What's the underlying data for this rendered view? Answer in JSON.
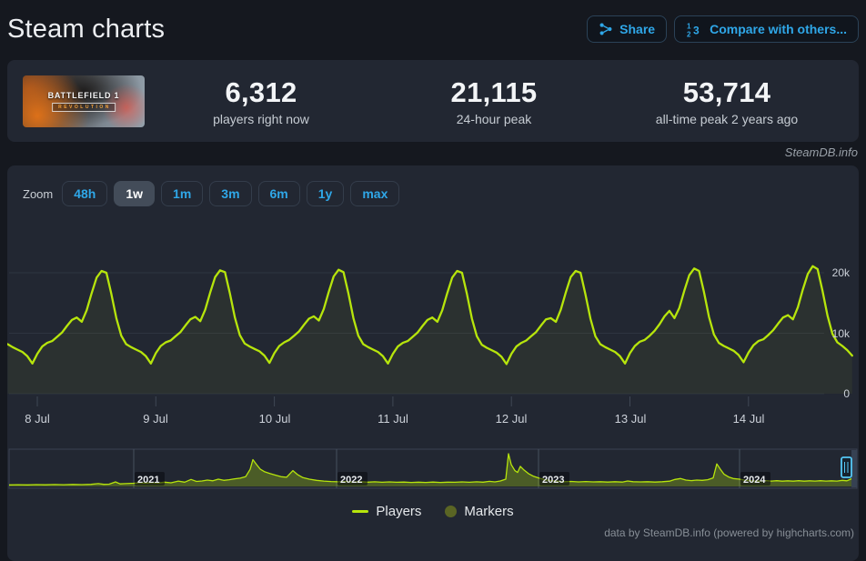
{
  "page": {
    "title": "Steam charts",
    "watermark": "SteamDB.info",
    "credits": "data by SteamDB.info (powered by highcharts.com)"
  },
  "header": {
    "share_label": "Share",
    "compare_label": "Compare with others...",
    "accent_color": "#2fa7e8"
  },
  "stats": {
    "game": {
      "name": "BATTLEFIELD 1",
      "edition": "REVOLUTION"
    },
    "items": [
      {
        "value": "6,312",
        "label": "players right now"
      },
      {
        "value": "21,115",
        "label": "24-hour peak"
      },
      {
        "value": "53,714",
        "label": "all-time peak 2 years ago"
      }
    ]
  },
  "toolbar": {
    "zoom_label": "Zoom",
    "ranges": [
      "48h",
      "1w",
      "1m",
      "3m",
      "6m",
      "1y",
      "max"
    ],
    "selected": "1w"
  },
  "chart_data": {
    "type": "line",
    "series_name": "Players",
    "line_color": "#b7e50c",
    "grid": true,
    "legend_position": "bottom-center",
    "ylim": [
      0,
      22000
    ],
    "yticks": [
      {
        "label": "0",
        "value": 0
      },
      {
        "label": "10k",
        "value": 10000
      },
      {
        "label": "20k",
        "value": 20000
      }
    ],
    "xticks": [
      "8 Jul",
      "9 Jul",
      "10 Jul",
      "11 Jul",
      "12 Jul",
      "13 Jul",
      "14 Jul"
    ],
    "start_hour_offset": -6,
    "values_thousands": [
      8.2,
      7.7,
      7.3,
      6.9,
      6.2,
      5.0,
      6.6,
      7.8,
      8.4,
      8.7,
      9.4,
      10.1,
      11.2,
      12.2,
      12.6,
      11.9,
      13.8,
      16.6,
      19.2,
      20.3,
      20.0,
      16.5,
      12.5,
      9.6,
      8.2,
      7.7,
      7.3,
      6.9,
      6.2,
      5.0,
      6.7,
      7.9,
      8.5,
      8.8,
      9.5,
      10.2,
      11.3,
      12.3,
      12.7,
      12.0,
      13.9,
      16.7,
      19.3,
      20.4,
      20.1,
      16.6,
      12.6,
      9.7,
      8.3,
      7.8,
      7.4,
      7.0,
      6.3,
      5.1,
      6.7,
      7.9,
      8.5,
      8.9,
      9.6,
      10.3,
      11.4,
      12.4,
      12.8,
      12.1,
      14.0,
      16.8,
      19.4,
      20.5,
      20.1,
      16.6,
      12.5,
      9.6,
      8.2,
      7.7,
      7.3,
      6.9,
      6.2,
      5.0,
      6.6,
      7.8,
      8.4,
      8.7,
      9.4,
      10.1,
      11.2,
      12.2,
      12.6,
      11.9,
      13.8,
      16.6,
      19.2,
      20.3,
      20.0,
      16.5,
      12.4,
      9.5,
      8.1,
      7.6,
      7.2,
      6.8,
      6.1,
      4.9,
      6.6,
      7.8,
      8.4,
      8.8,
      9.5,
      10.2,
      11.3,
      12.3,
      12.5,
      11.9,
      13.9,
      16.7,
      19.3,
      20.3,
      20.0,
      16.4,
      12.4,
      9.5,
      8.2,
      7.7,
      7.3,
      6.9,
      6.2,
      5.0,
      6.7,
      7.9,
      8.6,
      8.9,
      9.6,
      10.4,
      11.5,
      12.8,
      13.7,
      12.5,
      14.2,
      17.0,
      19.6,
      20.7,
      20.3,
      16.8,
      12.7,
      9.8,
      8.4,
      7.9,
      7.5,
      7.1,
      6.4,
      5.2,
      6.8,
      8.0,
      8.7,
      9.0,
      9.7,
      10.5,
      11.6,
      12.6,
      13.0,
      12.3,
      14.3,
      17.2,
      19.8,
      21.1,
      20.6,
      17.0,
      12.9,
      9.9,
      8.5,
      7.9,
      7.2,
      6.3
    ],
    "navigator": {
      "year_labels": [
        "2021",
        "2022",
        "2023",
        "2024"
      ],
      "year_x": [
        139,
        362,
        584,
        805
      ],
      "max_value_thousands": 53.7,
      "points": [
        [
          2,
          2.5
        ],
        [
          12,
          2.8
        ],
        [
          22,
          2.6
        ],
        [
          32,
          3.0
        ],
        [
          42,
          2.7
        ],
        [
          52,
          3.2
        ],
        [
          62,
          2.8
        ],
        [
          72,
          3.3
        ],
        [
          82,
          3.0
        ],
        [
          92,
          3.4
        ],
        [
          100,
          4.6
        ],
        [
          106,
          3.4
        ],
        [
          112,
          3.8
        ],
        [
          119,
          7.5
        ],
        [
          124,
          4.2
        ],
        [
          130,
          4.6
        ],
        [
          139,
          5.2
        ],
        [
          146,
          6.3
        ],
        [
          152,
          5.4
        ],
        [
          159,
          6.6
        ],
        [
          166,
          5.6
        ],
        [
          173,
          7.0
        ],
        [
          180,
          6.0
        ],
        [
          188,
          8.8
        ],
        [
          195,
          7.0
        ],
        [
          202,
          11.5
        ],
        [
          208,
          8.2
        ],
        [
          214,
          9.0
        ],
        [
          220,
          10.5
        ],
        [
          226,
          9.2
        ],
        [
          232,
          12.0
        ],
        [
          238,
          10.0
        ],
        [
          244,
          11.0
        ],
        [
          250,
          12.5
        ],
        [
          256,
          13.5
        ],
        [
          262,
          16.0
        ],
        [
          267,
          28.0
        ],
        [
          270,
          44.0
        ],
        [
          274,
          36.0
        ],
        [
          278,
          28.5
        ],
        [
          283,
          24.0
        ],
        [
          289,
          21.0
        ],
        [
          295,
          18.5
        ],
        [
          301,
          16.0
        ],
        [
          307,
          15.0
        ],
        [
          314,
          26.0
        ],
        [
          319,
          19.5
        ],
        [
          325,
          14.5
        ],
        [
          332,
          12.0
        ],
        [
          340,
          10.0
        ],
        [
          348,
          8.8
        ],
        [
          356,
          8.0
        ],
        [
          364,
          7.6
        ],
        [
          372,
          8.2
        ],
        [
          380,
          7.2
        ],
        [
          388,
          7.8
        ],
        [
          396,
          7.0
        ],
        [
          404,
          7.6
        ],
        [
          412,
          6.8
        ],
        [
          420,
          7.4
        ],
        [
          428,
          6.8
        ],
        [
          436,
          7.2
        ],
        [
          444,
          6.6
        ],
        [
          452,
          7.0
        ],
        [
          460,
          6.6
        ],
        [
          468,
          7.2
        ],
        [
          476,
          6.6
        ],
        [
          484,
          7.0
        ],
        [
          492,
          6.8
        ],
        [
          500,
          7.4
        ],
        [
          508,
          6.8
        ],
        [
          516,
          7.6
        ],
        [
          523,
          7.0
        ],
        [
          530,
          8.4
        ],
        [
          536,
          7.4
        ],
        [
          542,
          9.0
        ],
        [
          548,
          12.0
        ],
        [
          551,
          53.7
        ],
        [
          554,
          36.0
        ],
        [
          558,
          26.0
        ],
        [
          561,
          23.0
        ],
        [
          564,
          33.0
        ],
        [
          568,
          27.0
        ],
        [
          573,
          21.0
        ],
        [
          578,
          17.0
        ],
        [
          584,
          14.0
        ],
        [
          591,
          11.0
        ],
        [
          598,
          9.5
        ],
        [
          605,
          8.5
        ],
        [
          612,
          7.8
        ],
        [
          620,
          8.2
        ],
        [
          628,
          7.4
        ],
        [
          636,
          8.0
        ],
        [
          644,
          7.4
        ],
        [
          652,
          7.8
        ],
        [
          660,
          7.2
        ],
        [
          668,
          7.8
        ],
        [
          676,
          7.2
        ],
        [
          682,
          9.0
        ],
        [
          688,
          7.8
        ],
        [
          696,
          7.4
        ],
        [
          704,
          7.8
        ],
        [
          712,
          7.2
        ],
        [
          720,
          7.8
        ],
        [
          728,
          8.6
        ],
        [
          734,
          11.5
        ],
        [
          740,
          13.0
        ],
        [
          746,
          10.5
        ],
        [
          752,
          9.5
        ],
        [
          758,
          10.5
        ],
        [
          764,
          10.0
        ],
        [
          770,
          11.0
        ],
        [
          776,
          14.0
        ],
        [
          780,
          37.0
        ],
        [
          784,
          28.0
        ],
        [
          788,
          20.0
        ],
        [
          793,
          15.5
        ],
        [
          798,
          13.0
        ],
        [
          805,
          12.0
        ],
        [
          810,
          10.5
        ],
        [
          816,
          9.5
        ],
        [
          822,
          9.0
        ],
        [
          828,
          8.6
        ],
        [
          834,
          9.6
        ],
        [
          840,
          8.8
        ],
        [
          846,
          9.4
        ],
        [
          852,
          8.6
        ],
        [
          858,
          9.2
        ],
        [
          864,
          8.6
        ],
        [
          870,
          9.4
        ],
        [
          876,
          8.6
        ],
        [
          882,
          9.2
        ],
        [
          888,
          8.8
        ],
        [
          894,
          9.4
        ],
        [
          900,
          8.8
        ],
        [
          906,
          9.2
        ],
        [
          912,
          8.8
        ],
        [
          918,
          10.0
        ],
        [
          923,
          9.2
        ],
        [
          928,
          12.5
        ],
        [
          932,
          10.5
        ],
        [
          934,
          11.0
        ]
      ]
    }
  },
  "legend": {
    "items": [
      {
        "label": "Players",
        "marker": "line",
        "color": "#b7e50c"
      },
      {
        "label": "Markers",
        "marker": "circle",
        "color": "#5a6524"
      }
    ]
  }
}
